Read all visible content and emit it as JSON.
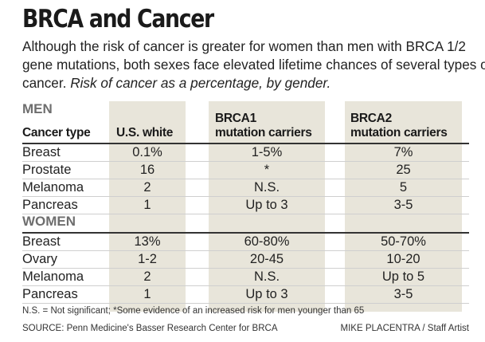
{
  "title": "BRCA and Cancer",
  "subtitle": "Although the risk of cancer is greater for women than men with BRCA 1/2 gene mutations, both sexes face elevated lifetime chances of several types of cancer.",
  "subtitle_italic": "Risk of cancer as a percentage, by gender.",
  "colors": {
    "column_shading": "#e8e5da",
    "section_label": "#6e6e6e"
  },
  "chart_data": {
    "type": "table",
    "columns": [
      "Cancer type",
      "U.S. white",
      "BRCA1 mutation carriers",
      "BRCA2 mutation carriers"
    ],
    "column_lines": [
      [
        "Cancer type"
      ],
      [
        "U.S. white"
      ],
      [
        "BRCA1",
        "mutation carriers"
      ],
      [
        "BRCA2",
        "mutation carriers"
      ]
    ],
    "sections": [
      {
        "label": "MEN",
        "rows": [
          [
            "Breast",
            "0.1%",
            "1-5%",
            "7%"
          ],
          [
            "Prostate",
            "16",
            "*",
            "25"
          ],
          [
            "Melanoma",
            "2",
            "N.S.",
            "5"
          ],
          [
            "Pancreas",
            "1",
            "Up to 3",
            "3-5"
          ]
        ]
      },
      {
        "label": "WOMEN",
        "rows": [
          [
            "Breast",
            "13%",
            "60-80%",
            "50-70%"
          ],
          [
            "Ovary",
            "1-2",
            "20-45",
            "10-20"
          ],
          [
            "Melanoma",
            "2",
            "N.S.",
            "Up to 5"
          ],
          [
            "Pancreas",
            "1",
            "Up to 3",
            "3-5"
          ]
        ]
      }
    ]
  },
  "footnote": "N.S. = Not significant; *Some evidence of an increased risk for men younger than 65",
  "source": "SOURCE: Penn Medicine's Basser Research Center for BRCA",
  "credit": "MIKE PLACENTRA / Staff Artist"
}
